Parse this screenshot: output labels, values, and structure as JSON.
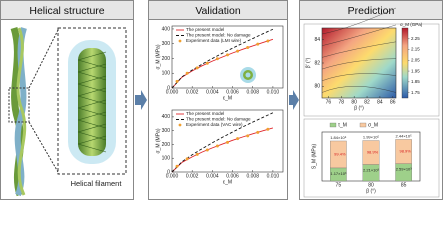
{
  "panels": [
    {
      "title": "Helical structure",
      "caption": "Helical filament"
    },
    {
      "title": "Validation",
      "plots": [
        {
          "xlabel": "ε_M",
          "ylabel": "σ_M (MPa)",
          "xlim": [
            0,
            0.011
          ],
          "ylim": [
            0,
            420
          ],
          "xticks": [
            {
              "value": 0,
              "label": "0.000"
            },
            {
              "value": 0.002,
              "label": "0.002"
            },
            {
              "value": 0.004,
              "label": "0.004"
            },
            {
              "value": 0.006,
              "label": "0.006"
            },
            {
              "value": 0.008,
              "label": "0.008"
            },
            {
              "value": 0.01,
              "label": "0.010"
            }
          ],
          "yticks": [
            0,
            100,
            200,
            300,
            400
          ],
          "series": [
            {
              "name": "The present model",
              "color": "#e0262b",
              "style": "line",
              "x": [
                0,
                0.001,
                0.002,
                0.003,
                0.004,
                0.005,
                0.006,
                0.007,
                0.008,
                0.009,
                0.01
              ],
              "values": [
                0,
                74,
                116,
                151,
                182,
                210,
                237,
                262,
                285,
                308,
                330
              ]
            },
            {
              "name": "The present model: No damage",
              "color": "#111111",
              "style": "dash",
              "x": [
                0,
                0.001,
                0.002,
                0.003,
                0.004,
                0.005,
                0.006,
                0.007,
                0.008,
                0.009,
                0.01
              ],
              "values": [
                0,
                76,
                122,
                162,
                200,
                236,
                270,
                303,
                335,
                367,
                398
              ]
            },
            {
              "name": "Experiment data (LMI wire)",
              "color": "#f0a030",
              "style": "dots",
              "x": [
                0.0005,
                0.0015,
                0.0025,
                0.0035,
                0.0045,
                0.0055,
                0.0065,
                0.0075,
                0.0085,
                0.0095
              ],
              "values": [
                45,
                100,
                136,
                168,
                198,
                224,
                250,
                274,
                297,
                318
              ]
            }
          ]
        },
        {
          "xlabel": "ε_M",
          "ylabel": "σ_M (MPa)",
          "xlim": [
            0,
            0.011
          ],
          "ylim": [
            0,
            450
          ],
          "xticks": [
            {
              "value": 0,
              "label": "0.000"
            },
            {
              "value": 0.002,
              "label": "0.002"
            },
            {
              "value": 0.004,
              "label": "0.004"
            },
            {
              "value": 0.006,
              "label": "0.006"
            },
            {
              "value": 0.008,
              "label": "0.008"
            },
            {
              "value": 0.01,
              "label": "0.010"
            }
          ],
          "yticks": [
            0,
            100,
            200,
            300,
            400
          ],
          "series": [
            {
              "name": "The present model",
              "color": "#e0262b",
              "style": "line",
              "x": [
                0,
                0.001,
                0.002,
                0.003,
                0.004,
                0.005,
                0.006,
                0.007,
                0.008,
                0.009,
                0.01
              ],
              "values": [
                0,
                70,
                110,
                145,
                175,
                203,
                230,
                254,
                277,
                299,
                320
              ]
            },
            {
              "name": "The present model: No damage",
              "color": "#111111",
              "style": "dash",
              "x": [
                0,
                0.001,
                0.002,
                0.003,
                0.004,
                0.005,
                0.006,
                0.007,
                0.008,
                0.009,
                0.01
              ],
              "values": [
                0,
                75,
                125,
                170,
                212,
                252,
                290,
                327,
                362,
                396,
                430
              ]
            },
            {
              "name": "Experiment data (VAC wire)",
              "color": "#f0a030",
              "style": "dots",
              "x": [
                0.0005,
                0.0015,
                0.0025,
                0.0035,
                0.0045,
                0.0055,
                0.0065,
                0.0075,
                0.0085,
                0.0095
              ],
              "values": [
                42,
                95,
                128,
                160,
                189,
                215,
                242,
                262,
                288,
                310
              ]
            }
          ]
        }
      ]
    },
    {
      "title": "Prediction",
      "heatmap": {
        "xlabel": "β (°)",
        "ylabel": "β' (°)",
        "xlim": [
          75,
          86.5
        ],
        "ylim": [
          79,
          85
        ],
        "xticks": [
          76,
          78,
          80,
          82,
          84,
          86
        ],
        "yticks": [
          80,
          82,
          84
        ],
        "colorbar": {
          "label": "σ_M (GPa)",
          "lim": [
            1.7,
            2.35
          ],
          "ticks": [
            1.75,
            1.85,
            1.95,
            2.05,
            2.15,
            2.25
          ]
        }
      },
      "bars": {
        "xlabel": "β (°)",
        "ylabel": "S_M (MPa)",
        "log": true,
        "ylim": [
          100,
          1000000
        ],
        "categories": [
          "75",
          "80",
          "85"
        ],
        "series": [
          {
            "name": "τ_M",
            "color": "#9ed08a",
            "values": [
              1170,
              2210,
              2590
            ],
            "value_labels": [
              "1.17×10³",
              "2.21×10³",
              "2.59×10³"
            ]
          },
          {
            "name": "σ_M",
            "color": "#f8c9a0",
            "values": [
              184000,
              199000,
              244000
            ],
            "value_labels": [
              "1.84×10⁵",
              "1.99×10⁵",
              "2.44×10⁵"
            ]
          }
        ],
        "share_labels": [
          "99.4%",
          "98.9%",
          "98.9%"
        ]
      }
    }
  ]
}
